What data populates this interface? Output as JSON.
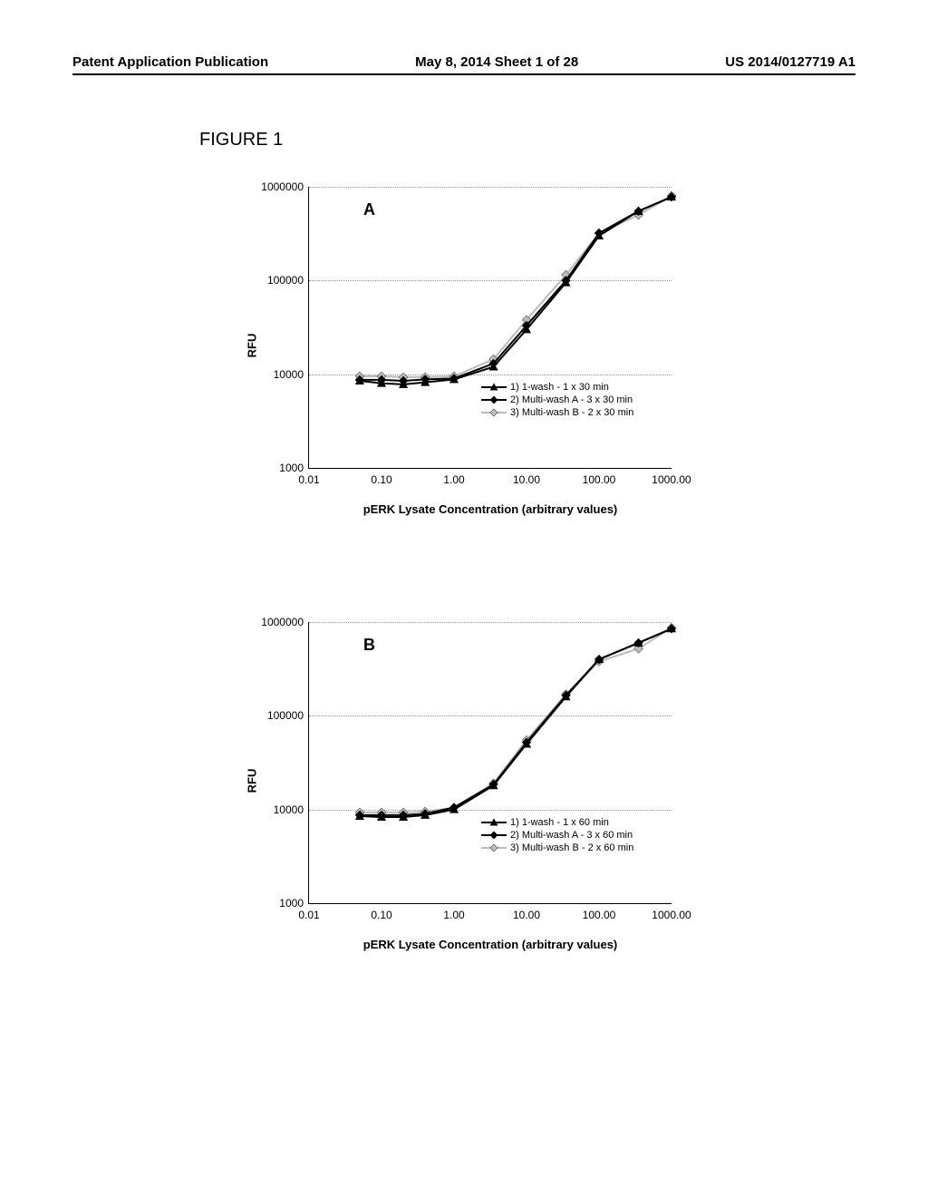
{
  "header": {
    "left": "Patent Application Publication",
    "center": "May 8, 2014  Sheet 1 of 28",
    "right": "US 2014/0127719 A1"
  },
  "figure_title": "FIGURE 1",
  "chart_common": {
    "ylabel": "RFU",
    "xlabel": "pERK Lysate Concentration (arbitrary values)",
    "ylim": [
      1000,
      1000000
    ],
    "xlim": [
      0.01,
      1000
    ],
    "yticks": [
      1000,
      10000,
      100000,
      1000000
    ],
    "ytick_labels": [
      "1000",
      "10000",
      "100000",
      "1000000"
    ],
    "xtick_labels": [
      "0.01",
      "0.10",
      "1.00",
      "10.00",
      "100.00",
      "1000.00"
    ],
    "xticks": [
      0.01,
      0.1,
      1.0,
      10.0,
      100.0,
      1000.0
    ],
    "grid_color": "#999999",
    "axis_color": "#000000",
    "background_color": "#ffffff",
    "font_family": "Arial",
    "label_fontsize": 13,
    "tick_fontsize": 12,
    "panel_label_fontsize": 18,
    "legend_fontsize": 11
  },
  "panels": [
    {
      "label": "A",
      "legend_items": [
        {
          "label": "1) 1-wash - 1 x 30 min",
          "marker": "triangle",
          "color": "#000000"
        },
        {
          "label": "2) Multi-wash A - 3 x 30 min",
          "marker": "diamond",
          "color": "#000000"
        },
        {
          "label": "3) Multi-wash B - 2 x 30 min",
          "marker": "diamond",
          "color": "#bbbbbb"
        }
      ],
      "series": [
        {
          "name": "1-wash-30",
          "color": "#000000",
          "marker": "triangle",
          "line_width": 2,
          "x": [
            0.05,
            0.1,
            0.2,
            0.4,
            1.0,
            3.5,
            10,
            35,
            100,
            350,
            1000
          ],
          "y": [
            8500,
            8000,
            7800,
            8200,
            8800,
            12000,
            30000,
            95000,
            300000,
            550000,
            780000
          ]
        },
        {
          "name": "multiwashA-30",
          "color": "#000000",
          "marker": "diamond",
          "line_width": 2,
          "x": [
            0.05,
            0.1,
            0.2,
            0.4,
            1.0,
            3.5,
            10,
            35,
            100,
            350,
            1000
          ],
          "y": [
            8700,
            8700,
            8500,
            8800,
            9000,
            13000,
            33000,
            100000,
            320000,
            550000,
            780000
          ]
        },
        {
          "name": "multiwashB-30",
          "color": "#bbbbbb",
          "marker": "diamond",
          "line_width": 2,
          "x": [
            0.05,
            0.1,
            0.2,
            0.4,
            1.0,
            3.5,
            10,
            35,
            100,
            350,
            1000
          ],
          "y": [
            9500,
            9500,
            9300,
            9300,
            9500,
            14500,
            38000,
            115000,
            320000,
            500000,
            800000
          ]
        }
      ]
    },
    {
      "label": "B",
      "legend_items": [
        {
          "label": "1) 1-wash - 1 x 60 min",
          "marker": "triangle",
          "color": "#000000"
        },
        {
          "label": "2) Multi-wash A - 3 x 60 min",
          "marker": "diamond",
          "color": "#000000"
        },
        {
          "label": "3) Multi-wash B - 2 x 60 min",
          "marker": "diamond",
          "color": "#bbbbbb"
        }
      ],
      "series": [
        {
          "name": "1-wash-60",
          "color": "#000000",
          "marker": "triangle",
          "line_width": 2,
          "x": [
            0.05,
            0.1,
            0.2,
            0.4,
            1.0,
            3.5,
            10,
            35,
            100,
            350,
            1000
          ],
          "y": [
            8500,
            8300,
            8300,
            8700,
            10000,
            18000,
            50000,
            160000,
            400000,
            600000,
            850000
          ]
        },
        {
          "name": "multiwashA-60",
          "color": "#000000",
          "marker": "diamond",
          "line_width": 2,
          "x": [
            0.05,
            0.1,
            0.2,
            0.4,
            1.0,
            3.5,
            10,
            35,
            100,
            350,
            1000
          ],
          "y": [
            8700,
            8700,
            8700,
            9000,
            10500,
            18500,
            52000,
            165000,
            400000,
            600000,
            850000
          ]
        },
        {
          "name": "multiwashB-60",
          "color": "#bbbbbb",
          "marker": "diamond",
          "line_width": 2,
          "x": [
            0.05,
            0.1,
            0.2,
            0.4,
            1.0,
            3.5,
            10,
            35,
            100,
            350,
            1000
          ],
          "y": [
            9300,
            9300,
            9300,
            9500,
            10500,
            19000,
            55000,
            170000,
            380000,
            520000,
            870000
          ]
        }
      ]
    }
  ]
}
